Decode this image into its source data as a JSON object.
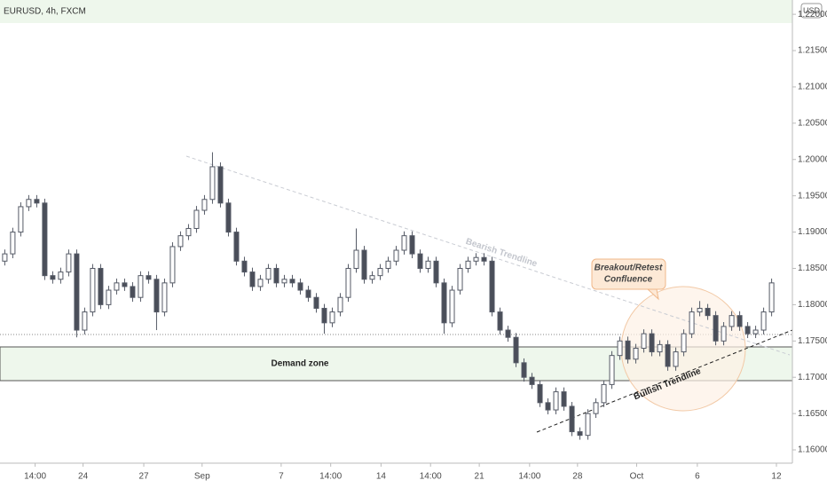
{
  "chart_data": {
    "type": "candlestick",
    "title": "EURUSD, 4h, FXCM",
    "currency": "USD",
    "annotations": {
      "demand_zone": "Demand zone",
      "bearish": "Bearish Trendline",
      "bullish": "Bullish Trendline",
      "callout": [
        "Breakout/Retest",
        "Confluence"
      ]
    },
    "up_color": "#ffffff",
    "down_color": "#4a4e59",
    "wick_color": "#555a66",
    "xlim": [
      -0.6,
      98.6
    ],
    "xticks": [
      {
        "value": 3.8,
        "label": "14:00"
      },
      {
        "value": 9.8,
        "label": "24"
      },
      {
        "value": 17.4,
        "label": "27"
      },
      {
        "value": 24.7,
        "label": "Sep"
      },
      {
        "value": 34.6,
        "label": "7"
      },
      {
        "value": 40.8,
        "label": "14:00"
      },
      {
        "value": 47.1,
        "label": "14"
      },
      {
        "value": 53.3,
        "label": "14:00"
      },
      {
        "value": 59.4,
        "label": "21"
      },
      {
        "value": 65.7,
        "label": "14:00"
      },
      {
        "value": 71.7,
        "label": "28"
      },
      {
        "value": 79.1,
        "label": "Oct"
      },
      {
        "value": 86.7,
        "label": "6"
      },
      {
        "value": 96.6,
        "label": "12"
      }
    ],
    "ylim": [
      1.15817,
      1.22197
    ],
    "yticks": [
      {
        "value": 1.16,
        "label": "1.16000"
      },
      {
        "value": 1.165,
        "label": "1.16500"
      },
      {
        "value": 1.17,
        "label": "1.17000"
      },
      {
        "value": 1.175,
        "label": "1.17500"
      },
      {
        "value": 1.18,
        "label": "1.18000"
      },
      {
        "value": 1.185,
        "label": "1.18500"
      },
      {
        "value": 1.19,
        "label": "1.19000"
      },
      {
        "value": 1.195,
        "label": "1.19500"
      },
      {
        "value": 1.2,
        "label": "1.20000"
      },
      {
        "value": 1.205,
        "label": "1.20500"
      },
      {
        "value": 1.21,
        "label": "1.21000"
      },
      {
        "value": 1.215,
        "label": "1.21500"
      },
      {
        "value": 1.22,
        "label": "1.22000"
      }
    ],
    "grid": false,
    "open": [
      1.186,
      1.187,
      1.19,
      1.1935,
      1.1945,
      1.194,
      1.184,
      1.1835,
      1.1845,
      1.187,
      1.1765,
      1.179,
      1.185,
      1.18,
      1.182,
      1.183,
      1.1825,
      1.181,
      1.184,
      1.1835,
      1.179,
      1.183,
      1.188,
      1.1895,
      1.1905,
      1.193,
      1.1945,
      1.199,
      1.194,
      1.19,
      1.186,
      1.1845,
      1.1825,
      1.1835,
      1.185,
      1.183,
      1.1835,
      1.183,
      1.182,
      1.181,
      1.1795,
      1.1775,
      1.179,
      1.181,
      1.185,
      1.1875,
      1.1835,
      1.184,
      1.185,
      1.186,
      1.1875,
      1.1895,
      1.187,
      1.185,
      1.186,
      1.183,
      1.1775,
      1.182,
      1.185,
      1.186,
      1.1865,
      1.186,
      1.179,
      1.1765,
      1.1755,
      1.172,
      1.17,
      1.169,
      1.1665,
      1.1655,
      1.168,
      1.166,
      1.1625,
      1.162,
      1.165,
      1.1665,
      1.169,
      1.173,
      1.175,
      1.1725,
      1.174,
      1.176,
      1.1735,
      1.1745,
      1.1715,
      1.1735,
      1.176,
      1.179,
      1.1795,
      1.1785,
      1.175,
      1.177,
      1.1785,
      1.177,
      1.176,
      1.1765,
      1.179
    ],
    "high": [
      1.1876,
      1.1906,
      1.1941,
      1.1951,
      1.1951,
      1.1946,
      1.1846,
      1.1851,
      1.1876,
      1.1876,
      1.1796,
      1.1856,
      1.1856,
      1.1826,
      1.1836,
      1.1836,
      1.1831,
      1.1846,
      1.1846,
      1.1841,
      1.1836,
      1.1886,
      1.1901,
      1.1911,
      1.1936,
      1.1951,
      1.201,
      1.1996,
      1.1946,
      1.1906,
      1.1866,
      1.1851,
      1.1841,
      1.1856,
      1.1856,
      1.1841,
      1.1841,
      1.1836,
      1.1826,
      1.1816,
      1.1801,
      1.1796,
      1.1816,
      1.1856,
      1.1905,
      1.1881,
      1.1846,
      1.1856,
      1.1866,
      1.1881,
      1.1901,
      1.1901,
      1.1876,
      1.1866,
      1.1866,
      1.1836,
      1.1826,
      1.1856,
      1.1866,
      1.1871,
      1.1871,
      1.1866,
      1.1796,
      1.1771,
      1.1761,
      1.1726,
      1.1706,
      1.1696,
      1.1671,
      1.1686,
      1.1686,
      1.1666,
      1.1631,
      1.1656,
      1.1671,
      1.1696,
      1.1736,
      1.1756,
      1.1756,
      1.1746,
      1.1766,
      1.1766,
      1.1751,
      1.1751,
      1.1741,
      1.1766,
      1.1796,
      1.1805,
      1.1801,
      1.1791,
      1.1776,
      1.1791,
      1.1791,
      1.1776,
      1.1771,
      1.1796,
      1.1836
    ],
    "low": [
      1.1854,
      1.1864,
      1.1894,
      1.1929,
      1.1934,
      1.1834,
      1.1829,
      1.1829,
      1.1839,
      1.1755,
      1.1759,
      1.1784,
      1.1794,
      1.1794,
      1.1814,
      1.1819,
      1.1804,
      1.1804,
      1.1829,
      1.1765,
      1.1784,
      1.1824,
      1.1874,
      1.1889,
      1.1899,
      1.1924,
      1.1939,
      1.1934,
      1.1894,
      1.1854,
      1.1839,
      1.1819,
      1.1819,
      1.1829,
      1.1824,
      1.1824,
      1.1824,
      1.1814,
      1.1804,
      1.1789,
      1.176,
      1.1769,
      1.1784,
      1.1804,
      1.1844,
      1.1829,
      1.1829,
      1.1834,
      1.1844,
      1.1854,
      1.1869,
      1.1864,
      1.1844,
      1.1844,
      1.1824,
      1.176,
      1.1769,
      1.1814,
      1.1844,
      1.1854,
      1.1854,
      1.1784,
      1.1759,
      1.1749,
      1.1714,
      1.1694,
      1.1684,
      1.1659,
      1.1649,
      1.1649,
      1.1654,
      1.1619,
      1.1614,
      1.1614,
      1.1644,
      1.1659,
      1.1684,
      1.1724,
      1.1719,
      1.1719,
      1.1734,
      1.1729,
      1.1729,
      1.1709,
      1.1709,
      1.1729,
      1.1754,
      1.1784,
      1.1779,
      1.1744,
      1.1744,
      1.1764,
      1.1764,
      1.1754,
      1.1754,
      1.1759,
      1.1784
    ],
    "close": [
      1.187,
      1.19,
      1.1935,
      1.1945,
      1.194,
      1.184,
      1.1835,
      1.1845,
      1.187,
      1.1765,
      1.179,
      1.185,
      1.18,
      1.182,
      1.183,
      1.1825,
      1.181,
      1.184,
      1.1835,
      1.179,
      1.183,
      1.188,
      1.1895,
      1.1905,
      1.193,
      1.1945,
      1.199,
      1.194,
      1.19,
      1.186,
      1.1845,
      1.1825,
      1.1835,
      1.185,
      1.183,
      1.1835,
      1.183,
      1.182,
      1.181,
      1.1795,
      1.1775,
      1.179,
      1.181,
      1.185,
      1.1875,
      1.1835,
      1.184,
      1.185,
      1.186,
      1.1875,
      1.1895,
      1.187,
      1.185,
      1.186,
      1.183,
      1.1775,
      1.182,
      1.185,
      1.186,
      1.1865,
      1.186,
      1.179,
      1.1765,
      1.1755,
      1.172,
      1.17,
      1.169,
      1.1665,
      1.1655,
      1.168,
      1.166,
      1.1625,
      1.162,
      1.165,
      1.1665,
      1.169,
      1.173,
      1.175,
      1.1725,
      1.174,
      1.176,
      1.1735,
      1.1745,
      1.1715,
      1.1735,
      1.176,
      1.179,
      1.1795,
      1.1785,
      1.175,
      1.177,
      1.1785,
      1.177,
      1.176,
      1.1765,
      1.179,
      1.183
    ]
  }
}
